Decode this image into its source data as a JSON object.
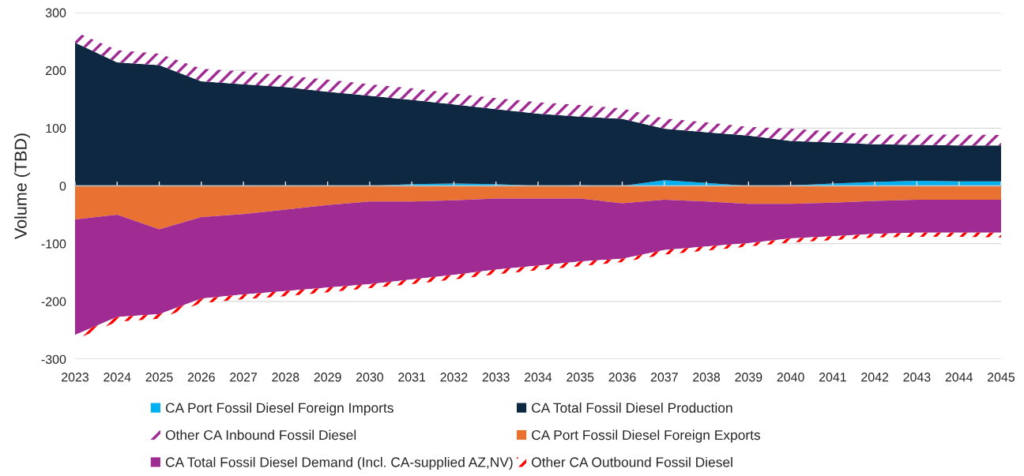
{
  "chart_data": [
    {
      "type": "area",
      "stacked": true,
      "ylabel": "Volume (TBD)",
      "categories": [
        "2023",
        "2024",
        "2025",
        "2026",
        "2027",
        "2028",
        "2029",
        "2030",
        "2031",
        "2032",
        "2033",
        "2034",
        "2035",
        "2036",
        "2037",
        "2038",
        "2039",
        "2040",
        "2041",
        "2042",
        "2043",
        "2044",
        "2045"
      ],
      "series": [
        {
          "name": "CA Port Fossil Diesel Foreign Imports",
          "color": "#00b0f0",
          "values": [
            0,
            0,
            0,
            0,
            0,
            0,
            0,
            0,
            3,
            4,
            3,
            0,
            1,
            0,
            10,
            5,
            0,
            1,
            4,
            7,
            9,
            8,
            8
          ]
        },
        {
          "name": "CA Total Fossil Diesel Production",
          "color": "#0e2841",
          "values": [
            248,
            214,
            209,
            181,
            176,
            171,
            163,
            156,
            146,
            137,
            130,
            125,
            119,
            116,
            89,
            88,
            87,
            77,
            71,
            65,
            62,
            62,
            62
          ]
        },
        {
          "name": "Other CA Inbound Fossil Diesel",
          "color": "#a02b93",
          "values": [
            19,
            21,
            20,
            22,
            22,
            20,
            21,
            20,
            20,
            19,
            19,
            20,
            20,
            18,
            18,
            17,
            15,
            21,
            19,
            17,
            18,
            19,
            18
          ]
        }
      ],
      "ylim": [
        -300,
        300
      ],
      "yticks": [
        -300,
        -200,
        -100,
        0,
        100,
        200,
        300
      ],
      "grid": "y",
      "legend": "bottom"
    },
    {
      "type": "area",
      "stacked": true,
      "categories": [
        "2023",
        "2024",
        "2025",
        "2026",
        "2027",
        "2028",
        "2029",
        "2030",
        "2031",
        "2032",
        "2033",
        "2034",
        "2035",
        "2036",
        "2037",
        "2038",
        "2039",
        "2040",
        "2041",
        "2042",
        "2043",
        "2044",
        "2045"
      ],
      "series": [
        {
          "name": "CA Port Fossil Diesel Foreign Exports",
          "color": "#e97132",
          "values": [
            -58,
            -50,
            -75,
            -54,
            -49,
            -41,
            -33,
            -27,
            -27,
            -25,
            -22,
            -22,
            -22,
            -30,
            -24,
            -27,
            -31,
            -31,
            -29,
            -26,
            -24,
            -24,
            -24
          ]
        },
        {
          "name": "CA Total Fossil Diesel Demand (Incl. CA-supplied AZ,NV)",
          "color": "#a02b93",
          "values": [
            -200,
            -177,
            -147,
            -141,
            -139,
            -141,
            -143,
            -143,
            -135,
            -129,
            -123,
            -116,
            -109,
            -96,
            -87,
            -78,
            -68,
            -60,
            -58,
            -57,
            -57,
            -57,
            -57
          ]
        },
        {
          "name": "Other CA Outbound Fossil Diesel",
          "color": "#ff0000",
          "values": [
            -8,
            -8,
            -8,
            -8,
            -8,
            -9,
            -8,
            -7,
            -8,
            -8,
            -8,
            -8,
            -8,
            -6,
            -8,
            -7,
            -6,
            -7,
            -7,
            -6,
            -7,
            -7,
            -8
          ]
        }
      ],
      "ylim": [
        -300,
        300
      ],
      "tick_labels": false,
      "legend": "bottom"
    }
  ]
}
